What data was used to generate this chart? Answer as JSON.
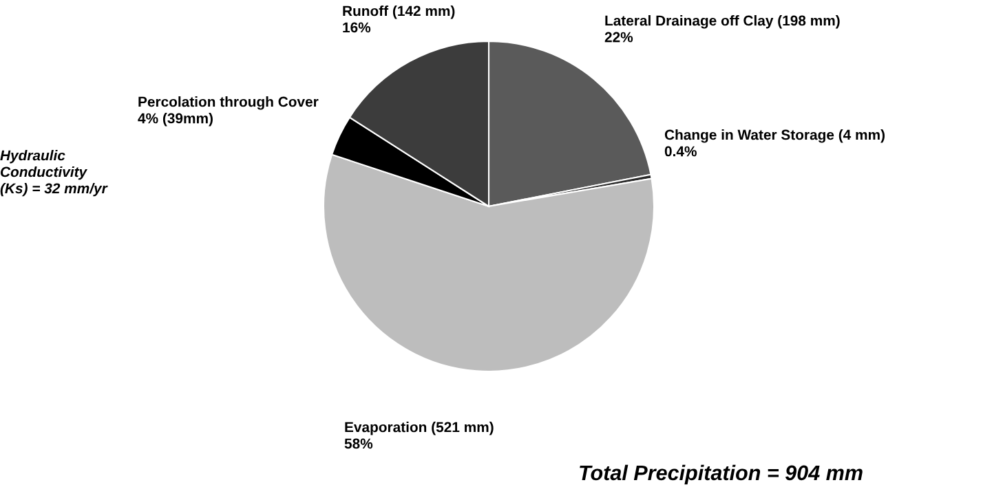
{
  "chart_data": {
    "type": "pie",
    "categories": [
      "Lateral Drainage off Clay (198 mm)",
      "Change in Water Storage (4 mm)",
      "Evaporation (521 mm)",
      "Percolation through Cover",
      "Runoff (142 mm)"
    ],
    "values": [
      22,
      0.4,
      58,
      4,
      16
    ],
    "value_labels": [
      "22%",
      "0.4%",
      "58%",
      "4% (39mm)",
      "16%"
    ],
    "colors": [
      "#5a5a5a",
      "#2a2a2a",
      "#bdbdbd",
      "#000000",
      "#3c3c3c"
    ],
    "annotations": [
      "Hydraulic\nConductivity\n(Ks) = 32 mm/yr",
      "Total Precipitation = 904 mm"
    ]
  }
}
